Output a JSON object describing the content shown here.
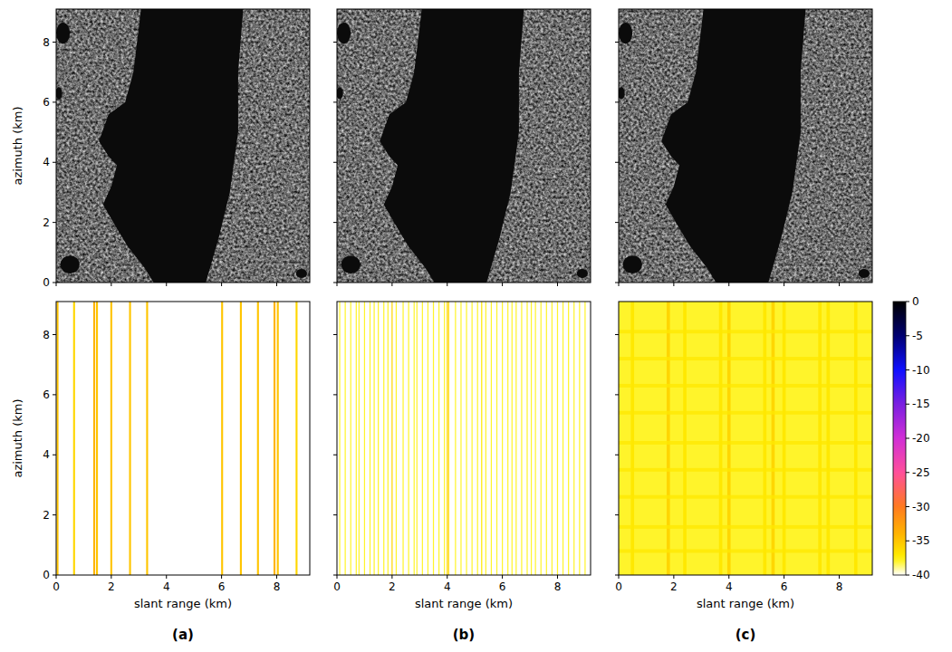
{
  "chart_data": [
    {
      "type": "image",
      "ylabel": "azimuth (km)",
      "xlim": [
        0,
        9.2
      ],
      "ylim": [
        0,
        9.1
      ],
      "xticks": [
        0,
        2,
        4,
        6,
        8
      ],
      "yticks": [
        0,
        2,
        4,
        6,
        8
      ],
      "tick_labels": "y"
    },
    {
      "type": "image",
      "xlim": [
        0,
        9.2
      ],
      "ylim": [
        0,
        9.1
      ],
      "xticks": [
        0,
        2,
        4,
        6,
        8
      ],
      "yticks": [
        0,
        2,
        4,
        6,
        8
      ],
      "tick_labels": false
    },
    {
      "type": "image",
      "xlim": [
        0,
        9.2
      ],
      "ylim": [
        0,
        9.1
      ],
      "xticks": [
        0,
        2,
        4,
        6,
        8
      ],
      "yticks": [
        0,
        2,
        4,
        6,
        8
      ],
      "tick_labels": false
    },
    {
      "type": "heatmap",
      "xlabel": "slant range (km)",
      "ylabel": "azimuth (km)",
      "xlim": [
        0,
        9.2
      ],
      "ylim": [
        0,
        9.1
      ],
      "xticks": [
        0,
        2,
        4,
        6,
        8
      ],
      "yticks": [
        0,
        2,
        4,
        6,
        8
      ],
      "tick_labels": true,
      "background": -40,
      "column_x": [
        0.05,
        0.65,
        1.38,
        1.48,
        2.0,
        2.68,
        3.3,
        6.02,
        6.7,
        7.32,
        7.92,
        8.04,
        8.72
      ],
      "column_values": [
        -35,
        -36,
        -34,
        -35,
        -35,
        -35,
        -35,
        -35,
        -35,
        -35,
        -34,
        -35,
        -36
      ],
      "column_width": 0.07
    },
    {
      "type": "heatmap",
      "xlabel": "slant range (km)",
      "xlim": [
        0,
        9.2
      ],
      "ylim": [
        0,
        9.1
      ],
      "xticks": [
        0,
        2,
        4,
        6,
        8
      ],
      "yticks": [
        0,
        2,
        4,
        6,
        8
      ],
      "tick_labels": "x",
      "background": -40,
      "column_x": [
        0.1,
        0.3,
        0.5,
        0.7,
        0.8,
        1.0,
        1.2,
        1.35,
        1.5,
        1.7,
        1.85,
        2.0,
        2.15,
        2.4,
        2.6,
        2.8,
        2.9,
        3.1,
        3.3,
        3.5,
        3.7,
        3.9,
        4.0,
        4.05,
        4.3,
        4.5,
        4.7,
        4.9,
        5.1,
        5.25,
        5.4,
        5.6,
        5.8,
        6.0,
        6.2,
        6.35,
        6.5,
        6.7,
        6.9,
        7.05,
        7.2,
        7.4,
        7.6,
        7.8,
        8.0,
        8.2,
        8.4,
        8.6,
        8.8,
        9.0
      ],
      "column_values": [
        -38,
        -38,
        -38,
        -38,
        -38,
        -38,
        -38,
        -38,
        -38,
        -38,
        -38,
        -36,
        -38,
        -38,
        -38,
        -38,
        -38,
        -38,
        -38,
        -38,
        -38,
        -38,
        -36,
        -36,
        -38,
        -38,
        -38,
        -38,
        -38,
        -37,
        -38,
        -38,
        -38,
        -38,
        -38,
        -38,
        -38,
        -38,
        -38,
        -38,
        -38,
        -38,
        -38,
        -38,
        -38,
        -38,
        -38,
        -38,
        -38,
        -38
      ],
      "column_width": 0.04
    },
    {
      "type": "heatmap",
      "xlabel": "slant range (km)",
      "xlim": [
        0,
        9.2
      ],
      "ylim": [
        0,
        9.1
      ],
      "xticks": [
        0,
        2,
        4,
        6,
        8
      ],
      "yticks": [
        0,
        2,
        4,
        6,
        8
      ],
      "tick_labels": "x",
      "background": -38,
      "column_x": [
        0.5,
        1.8,
        2.4,
        3.7,
        4.0,
        5.3,
        5.6,
        6.0,
        7.3,
        7.6,
        8.6
      ],
      "column_values": [
        -37,
        -36,
        -37,
        -37,
        -36,
        -37,
        -36,
        -37,
        -37,
        -37,
        -37
      ],
      "column_width": 0.12,
      "row_y": [
        0.8,
        1.6,
        2.6,
        3.5,
        4.4,
        5.4,
        6.3,
        7.2,
        8.1
      ],
      "row_values": [
        -37,
        -37,
        -37,
        -37,
        -37,
        -37,
        -37,
        -37,
        -37
      ],
      "row_width": 0.12
    }
  ],
  "colorbar": {
    "lim": [
      -40,
      0
    ],
    "ticks": [
      0,
      -5,
      -10,
      -15,
      -20,
      -25,
      -30,
      -35,
      -40
    ]
  },
  "panel_labels": [
    "(a)",
    "(b)",
    "(c)"
  ]
}
